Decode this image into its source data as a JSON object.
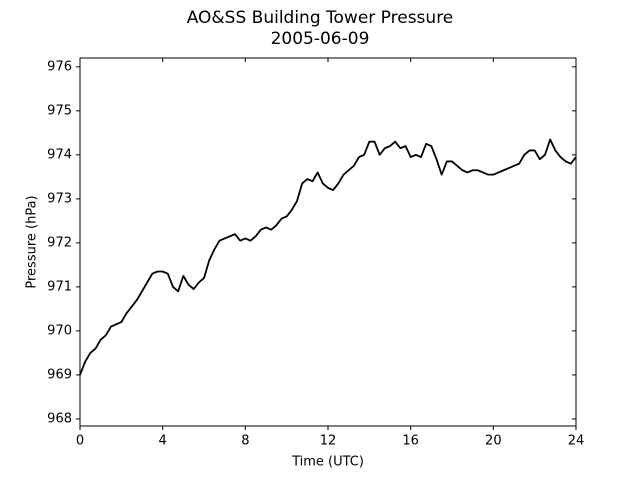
{
  "chart_data": {
    "type": "line",
    "title": "AO&SS Building Tower Pressure",
    "subtitle": "2005-06-09",
    "x_label": "Time (UTC)",
    "y_label": "Pressure (hPa)",
    "xlim": [
      0,
      24
    ],
    "xticks": [
      0,
      4,
      8,
      12,
      16,
      20,
      24
    ],
    "ylim": [
      967.84,
      976.2
    ],
    "yticks": [
      968,
      969,
      970,
      971,
      972,
      973,
      974,
      975,
      976
    ],
    "series": [
      {
        "color": "#000000",
        "x": [
          0,
          0.25,
          0.5,
          0.75,
          1,
          1.25,
          1.5,
          1.75,
          2,
          2.25,
          2.5,
          2.75,
          3,
          3.25,
          3.5,
          3.75,
          4,
          4.25,
          4.5,
          4.75,
          5,
          5.25,
          5.5,
          5.75,
          6,
          6.25,
          6.5,
          6.75,
          7,
          7.25,
          7.5,
          7.75,
          8,
          8.25,
          8.5,
          8.75,
          9,
          9.25,
          9.5,
          9.75,
          10,
          10.25,
          10.5,
          10.75,
          11,
          11.25,
          11.5,
          11.75,
          12,
          12.25,
          12.5,
          12.75,
          13,
          13.25,
          13.5,
          13.75,
          14,
          14.25,
          14.5,
          14.75,
          15,
          15.25,
          15.5,
          15.75,
          16,
          16.25,
          16.5,
          16.75,
          17,
          17.25,
          17.5,
          17.75,
          18,
          18.25,
          18.5,
          18.75,
          19,
          19.25,
          19.5,
          19.75,
          20,
          20.25,
          20.5,
          20.75,
          21,
          21.25,
          21.5,
          21.75,
          22,
          22.25,
          22.5,
          22.75,
          23,
          23.25,
          23.5,
          23.75,
          24
        ],
        "values": [
          969.0,
          969.3,
          969.5,
          969.6,
          969.8,
          969.9,
          970.1,
          970.15,
          970.2,
          970.4,
          970.55,
          970.7,
          970.9,
          971.1,
          971.3,
          971.35,
          971.35,
          971.3,
          971.0,
          970.9,
          971.25,
          971.05,
          970.95,
          971.1,
          971.2,
          971.6,
          971.85,
          972.05,
          972.1,
          972.15,
          972.2,
          972.05,
          972.1,
          972.05,
          972.15,
          972.3,
          972.35,
          972.3,
          972.4,
          972.55,
          972.6,
          972.75,
          972.95,
          973.35,
          973.45,
          973.4,
          973.6,
          973.35,
          973.25,
          973.2,
          973.35,
          973.55,
          973.65,
          973.75,
          973.95,
          974.0,
          974.3,
          974.3,
          974.0,
          974.15,
          974.2,
          974.3,
          974.15,
          974.2,
          973.95,
          974.0,
          973.95,
          974.25,
          974.2,
          973.9,
          973.55,
          973.85,
          973.85,
          973.75,
          973.65,
          973.6,
          973.65,
          973.65,
          973.6,
          973.55,
          973.55,
          973.6,
          973.65,
          973.7,
          973.75,
          973.8,
          974.0,
          974.1,
          974.1,
          973.9,
          974.0,
          974.35,
          974.1,
          973.95,
          973.85,
          973.8,
          973.95
        ]
      }
    ]
  }
}
